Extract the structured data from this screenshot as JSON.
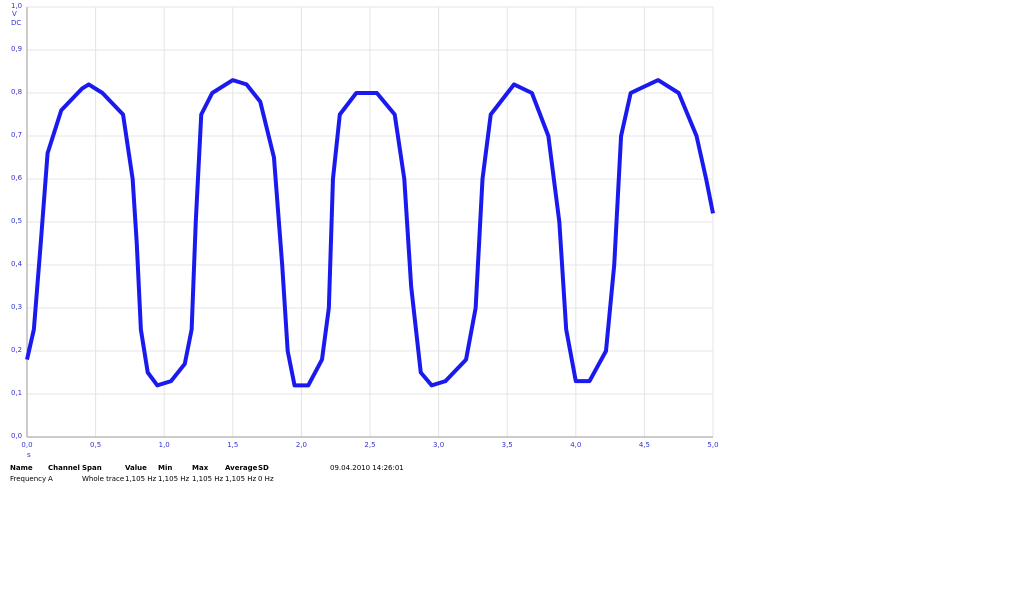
{
  "chart_data": {
    "type": "line",
    "y_label": "V",
    "y_coupling": "DC",
    "x_label": "s",
    "xlim": [
      0,
      5
    ],
    "ylim": [
      0,
      1
    ],
    "xticks": [
      {
        "value": 0,
        "label": "0,0"
      },
      {
        "value": 0.5,
        "label": "0,5"
      },
      {
        "value": 1,
        "label": "1,0"
      },
      {
        "value": 1.5,
        "label": "1,5"
      },
      {
        "value": 2,
        "label": "2,0"
      },
      {
        "value": 2.5,
        "label": "2,5"
      },
      {
        "value": 3,
        "label": "3,0"
      },
      {
        "value": 3.5,
        "label": "3,5"
      },
      {
        "value": 4,
        "label": "4,0"
      },
      {
        "value": 4.5,
        "label": "4,5"
      },
      {
        "value": 5,
        "label": "5,0"
      }
    ],
    "yticks": [
      {
        "value": 0,
        "label": "0,0"
      },
      {
        "value": 0.1,
        "label": "0,1"
      },
      {
        "value": 0.2,
        "label": "0,2"
      },
      {
        "value": 0.3,
        "label": "0,3"
      },
      {
        "value": 0.4,
        "label": "0,4"
      },
      {
        "value": 0.5,
        "label": "0,5"
      },
      {
        "value": 0.6,
        "label": "0,6"
      },
      {
        "value": 0.7,
        "label": "0,7"
      },
      {
        "value": 0.8,
        "label": "0,8"
      },
      {
        "value": 0.9,
        "label": "0,9"
      },
      {
        "value": 1,
        "label": "1,0"
      }
    ],
    "grid": true,
    "series": [
      {
        "name": "A",
        "color": "#1a1aee",
        "x": [
          0,
          0.05,
          0.1,
          0.15,
          0.25,
          0.4,
          0.45,
          0.55,
          0.7,
          0.77,
          0.8,
          0.83,
          0.88,
          0.95,
          1.05,
          1.15,
          1.2,
          1.23,
          1.27,
          1.35,
          1.5,
          1.6,
          1.7,
          1.8,
          1.86,
          1.9,
          1.95,
          2.05,
          2.15,
          2.2,
          2.23,
          2.28,
          2.4,
          2.55,
          2.68,
          2.75,
          2.8,
          2.87,
          2.95,
          3.05,
          3.2,
          3.27,
          3.32,
          3.38,
          3.55,
          3.68,
          3.8,
          3.88,
          3.93,
          4.0,
          4.1,
          4.22,
          4.28,
          4.33,
          4.4,
          4.6,
          4.75,
          4.88,
          4.95,
          5.0
        ],
        "values": [
          0.18,
          0.25,
          0.45,
          0.66,
          0.76,
          0.81,
          0.82,
          0.8,
          0.75,
          0.6,
          0.45,
          0.25,
          0.15,
          0.12,
          0.13,
          0.17,
          0.25,
          0.5,
          0.75,
          0.8,
          0.83,
          0.82,
          0.78,
          0.65,
          0.4,
          0.2,
          0.12,
          0.12,
          0.18,
          0.3,
          0.6,
          0.75,
          0.8,
          0.8,
          0.75,
          0.6,
          0.35,
          0.15,
          0.12,
          0.13,
          0.18,
          0.3,
          0.6,
          0.75,
          0.82,
          0.8,
          0.7,
          0.5,
          0.25,
          0.13,
          0.13,
          0.2,
          0.4,
          0.7,
          0.8,
          0.83,
          0.8,
          0.7,
          0.6,
          0.52
        ]
      }
    ]
  },
  "measurements": {
    "headers": [
      "Name",
      "Channel",
      "Span",
      "Value",
      "Min",
      "Max",
      "Average",
      "SD"
    ],
    "row": [
      "Frequency",
      "A",
      "Whole trace",
      "1,105 Hz",
      "1,105 Hz",
      "1,105 Hz",
      "1,105 Hz",
      "0 Hz"
    ]
  },
  "timestamp": "09.04.2010 14:26:01"
}
